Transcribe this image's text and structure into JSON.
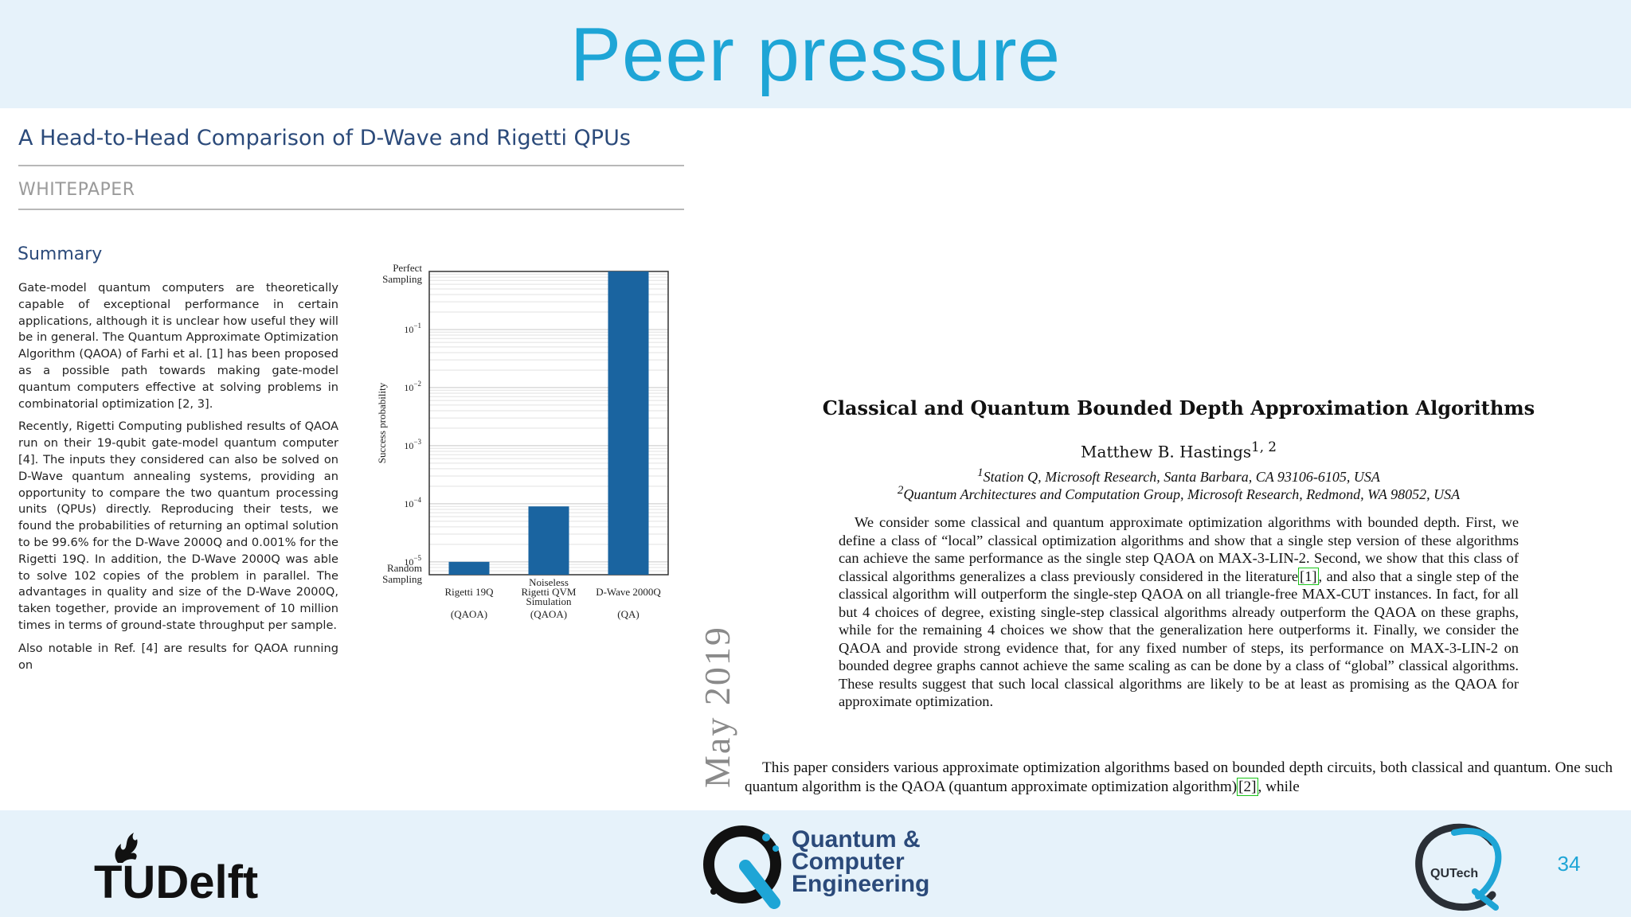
{
  "slide": {
    "title": "Peer pressure",
    "page_number": "34",
    "date_label": "May 2019"
  },
  "whitepaper": {
    "title": "A Head-to-Head Comparison of D-Wave and Rigetti QPUs",
    "label": "WHITEPAPER",
    "summary_heading": "Summary",
    "paragraphs": [
      "Gate-model quantum computers are theoretically capable of exceptional performance in certain applications, although it is unclear how useful they will be in general. The Quantum Approximate Optimization Algorithm (QAOA) of Farhi et al. [1] has been proposed as a possible path towards making gate-model quantum computers effective at solving problems in combinatorial optimization [2, 3].",
      "Recently, Rigetti Computing published results of QAOA run on their 19-qubit gate-model quantum computer [4]. The inputs they considered can also be solved on D-Wave quantum annealing systems, providing an opportunity to compare the two quantum processing units (QPUs) directly. Reproducing their tests, we found the probabilities of returning an optimal solution to be 99.6% for the D-Wave 2000Q and 0.001% for the Rigetti 19Q. In addition, the D-Wave 2000Q was able to solve 102 copies of the problem in parallel. The advantages in quality and size of the D-Wave 2000Q, taken together, provide an improvement of 10 million times in terms of ground-state throughput per sample.",
      "Also notable in Ref. [4] are results for QAOA running on"
    ]
  },
  "chart_data": {
    "type": "bar",
    "y_scale": "log",
    "ylabel": "Success probability",
    "ylim": [
      6e-06,
      1
    ],
    "y_top_label": [
      "Perfect",
      "Sampling"
    ],
    "y_bottom_label": [
      "Random",
      "Sampling"
    ],
    "yticks": [
      {
        "value": 0.1,
        "base": "10",
        "exp": "−1"
      },
      {
        "value": 0.01,
        "base": "10",
        "exp": "−2"
      },
      {
        "value": 0.001,
        "base": "10",
        "exp": "−3"
      },
      {
        "value": 0.0001,
        "base": "10",
        "exp": "−4"
      },
      {
        "value": 1e-05,
        "base": "10",
        "exp": "−5"
      }
    ],
    "categories": [
      {
        "name": [
          "Rigetti 19Q"
        ],
        "sub": "(QAOA)"
      },
      {
        "name": [
          "Noiseless",
          "Rigetti QVM",
          "Simulation"
        ],
        "sub": "(QAOA)"
      },
      {
        "name": [
          "D-Wave 2000Q"
        ],
        "sub": "(QA)"
      }
    ],
    "values": [
      1e-05,
      9e-05,
      1.0
    ],
    "bar_color": "#1a64a0"
  },
  "paper": {
    "title": "Classical and Quantum Bounded Depth Approximation Algorithms",
    "author": "Matthew B. Hastings",
    "author_sup": "1, 2",
    "affiliations": [
      {
        "sup": "1",
        "text": "Station Q, Microsoft Research, Santa Barbara, CA 93106-6105, USA"
      },
      {
        "sup": "2",
        "text": "Quantum Architectures and Computation Group, Microsoft Research, Redmond, WA 98052, USA"
      }
    ],
    "abstract_a": "We consider some classical and quantum approximate optimization algorithms with bounded depth. First, we define a class of “local” classical optimization algorithms and show that a single step version of these algorithms can achieve the same performance as the single step QAOA on MAX-3-LIN-2. Second, we show that this class of classical algorithms generalizes a class previously considered in the literature",
    "abstract_cite": "[1]",
    "abstract_b": ", and also that a single step of the classical algorithm will outperform the single-step QAOA on all triangle-free MAX-CUT instances. In fact, for all but 4 choices of degree, existing single-step classical algorithms already outperform the QAOA on these graphs, while for the remaining 4 choices we show that the generalization here outperforms it. Finally, we consider the QAOA and provide strong evidence that, for any fixed number of steps, its performance on MAX-3-LIN-2 on bounded degree graphs cannot achieve the same scaling as can be done by a class of “global” classical algorithms. These results suggest that such local classical algorithms are likely to be at least as promising as the QAOA for approximate optimization.",
    "intro_a": "This paper considers various approximate optimization algorithms based on bounded depth circuits, both classical and quantum. One such quantum algorithm is the QAOA (quantum approximate optimization algorithm)",
    "intro_cite": "[2]",
    "intro_b": ", while"
  },
  "logos": {
    "tudelft": "TUDelft",
    "qce": [
      "Quantum &",
      "Computer",
      "Engineering"
    ],
    "qutech": "QUTech"
  },
  "colors": {
    "accent": "#1ea5d6",
    "band": "#e6f2fa",
    "wp_heading": "#2b4a7a"
  }
}
